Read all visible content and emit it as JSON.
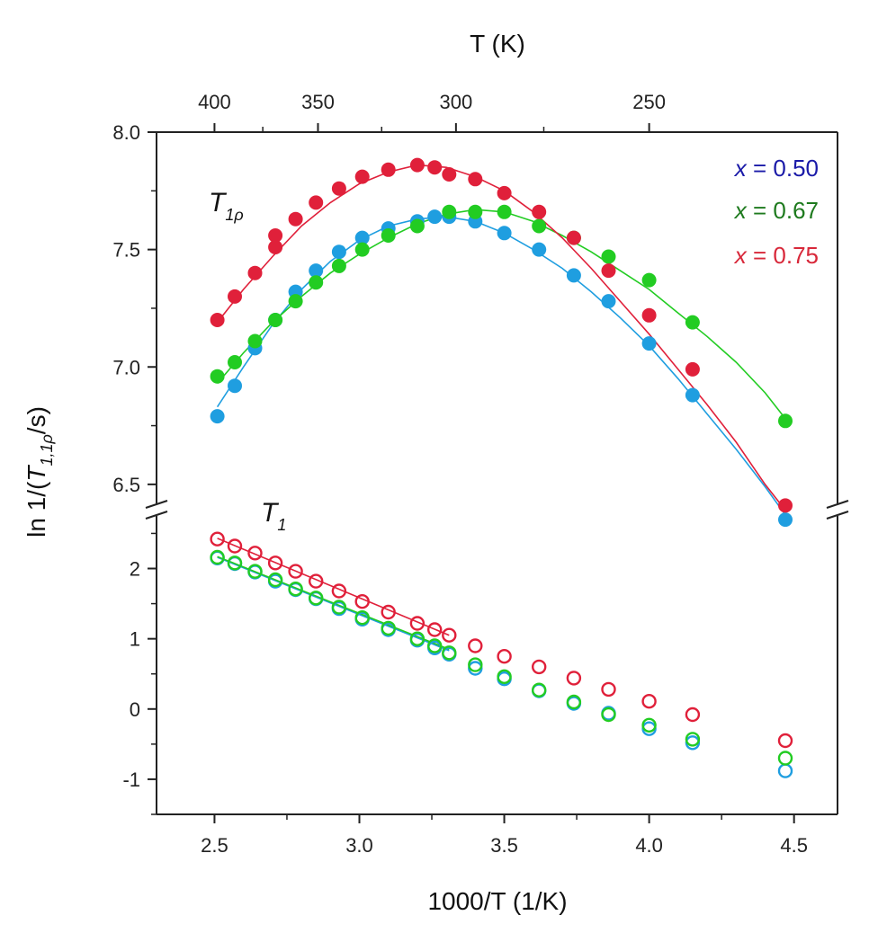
{
  "chart_data": {
    "type": "scatter",
    "xlabel": "1000/T (1/K)",
    "x2label": "T (K)",
    "ylabel_prefix": "ln 1/(",
    "ylabel_var": "T",
    "ylabel_sub": "1,1ρ",
    "ylabel_suffix": "/s)",
    "xlim": [
      2.3,
      4.65
    ],
    "x_ticks": [
      "2.5",
      "3.0",
      "3.5",
      "4.0",
      "4.5"
    ],
    "x2_ticks": [
      "400",
      "350",
      "300",
      "250"
    ],
    "x2_tick_values_K": [
      400,
      350,
      300,
      250
    ],
    "y_upper_lim": [
      6.4,
      8.0
    ],
    "y_upper_ticks": [
      "6.5",
      "7.0",
      "7.5",
      "8.0"
    ],
    "y_lower_lim": [
      -1.5,
      2.8
    ],
    "y_lower_ticks": [
      "-1",
      "0",
      "1",
      "2"
    ],
    "axis_break": true,
    "annotations": {
      "t1rho_main": "T",
      "t1rho_sub": "1ρ",
      "t1_main": "T",
      "t1_sub": "1"
    },
    "legend": {
      "placement": "top-right",
      "entries": [
        {
          "var": "x",
          "text": " = 0.50",
          "color": "#1a1aa8"
        },
        {
          "var": "x",
          "text": " = 0.67",
          "color": "#1e7a1e"
        },
        {
          "var": "x",
          "text": " = 0.75",
          "color": "#d8283a"
        }
      ]
    },
    "series": [
      {
        "panel": "T1rho",
        "color": "#1f9ee0",
        "x": [
          2.51,
          2.57,
          2.64,
          2.71,
          2.78,
          2.85,
          2.93,
          3.01,
          3.1,
          3.2,
          3.26,
          3.31,
          3.4,
          3.5,
          3.62,
          3.74,
          3.86,
          4.0,
          4.15,
          4.47
        ],
        "y": [
          6.79,
          6.92,
          7.08,
          7.2,
          7.32,
          7.41,
          7.49,
          7.55,
          7.59,
          7.62,
          7.64,
          7.64,
          7.62,
          7.57,
          7.5,
          7.39,
          7.28,
          7.1,
          6.88,
          6.35
        ],
        "fit": [
          [
            2.51,
            6.83
          ],
          [
            2.6,
            7.0
          ],
          [
            2.7,
            7.18
          ],
          [
            2.8,
            7.33
          ],
          [
            2.9,
            7.45
          ],
          [
            3.0,
            7.54
          ],
          [
            3.1,
            7.6
          ],
          [
            3.2,
            7.63
          ],
          [
            3.3,
            7.64
          ],
          [
            3.4,
            7.62
          ],
          [
            3.5,
            7.57
          ],
          [
            3.6,
            7.5
          ],
          [
            3.7,
            7.42
          ],
          [
            3.8,
            7.32
          ],
          [
            3.9,
            7.21
          ],
          [
            4.0,
            7.09
          ],
          [
            4.1,
            6.95
          ],
          [
            4.2,
            6.8
          ],
          [
            4.3,
            6.65
          ],
          [
            4.4,
            6.49
          ],
          [
            4.47,
            6.37
          ]
        ]
      },
      {
        "panel": "T1rho",
        "color": "#22cc22",
        "x": [
          2.51,
          2.57,
          2.64,
          2.71,
          2.78,
          2.85,
          2.93,
          3.01,
          3.1,
          3.2,
          3.31,
          3.4,
          3.5,
          3.62,
          3.74,
          3.86,
          4.0,
          4.15,
          4.47
        ],
        "y": [
          6.96,
          7.02,
          7.11,
          7.2,
          7.28,
          7.36,
          7.43,
          7.5,
          7.56,
          7.6,
          7.66,
          7.66,
          7.66,
          7.6,
          7.55,
          7.47,
          7.37,
          7.19,
          6.77
        ],
        "fit": [
          [
            2.51,
            6.93
          ],
          [
            2.6,
            7.06
          ],
          [
            2.7,
            7.19
          ],
          [
            2.8,
            7.3
          ],
          [
            2.9,
            7.4
          ],
          [
            3.0,
            7.48
          ],
          [
            3.1,
            7.55
          ],
          [
            3.2,
            7.61
          ],
          [
            3.3,
            7.65
          ],
          [
            3.4,
            7.67
          ],
          [
            3.5,
            7.66
          ],
          [
            3.6,
            7.62
          ],
          [
            3.7,
            7.56
          ],
          [
            3.8,
            7.49
          ],
          [
            3.9,
            7.41
          ],
          [
            4.0,
            7.33
          ],
          [
            4.1,
            7.23
          ],
          [
            4.2,
            7.13
          ],
          [
            4.3,
            7.02
          ],
          [
            4.4,
            6.89
          ],
          [
            4.47,
            6.78
          ]
        ]
      },
      {
        "panel": "T1rho",
        "color": "#e0203a",
        "x": [
          2.51,
          2.57,
          2.64,
          2.71,
          2.71,
          2.78,
          2.85,
          2.93,
          3.01,
          3.1,
          3.2,
          3.26,
          3.31,
          3.4,
          3.5,
          3.62,
          3.74,
          3.86,
          4.0,
          4.15,
          4.47
        ],
        "y": [
          7.2,
          7.3,
          7.4,
          7.51,
          7.56,
          7.63,
          7.7,
          7.76,
          7.81,
          7.84,
          7.86,
          7.85,
          7.82,
          7.8,
          7.74,
          7.66,
          7.55,
          7.41,
          7.22,
          6.99,
          6.41
        ],
        "fit": [
          [
            2.51,
            7.19
          ],
          [
            2.6,
            7.33
          ],
          [
            2.7,
            7.47
          ],
          [
            2.8,
            7.6
          ],
          [
            2.9,
            7.7
          ],
          [
            3.0,
            7.78
          ],
          [
            3.1,
            7.83
          ],
          [
            3.2,
            7.86
          ],
          [
            3.3,
            7.85
          ],
          [
            3.4,
            7.81
          ],
          [
            3.5,
            7.75
          ],
          [
            3.6,
            7.66
          ],
          [
            3.7,
            7.55
          ],
          [
            3.8,
            7.42
          ],
          [
            3.9,
            7.28
          ],
          [
            4.0,
            7.14
          ],
          [
            4.1,
            6.99
          ],
          [
            4.2,
            6.84
          ],
          [
            4.3,
            6.68
          ],
          [
            4.4,
            6.5
          ],
          [
            4.47,
            6.39
          ]
        ]
      },
      {
        "panel": "T1",
        "color": "#1f9ee0",
        "x": [
          2.51,
          2.57,
          2.64,
          2.71,
          2.78,
          2.85,
          2.93,
          3.01,
          3.1,
          3.2,
          3.26,
          3.31,
          3.4,
          3.5,
          3.62,
          3.74,
          3.86,
          4.0,
          4.15,
          4.47
        ],
        "y": [
          2.15,
          2.07,
          1.95,
          1.82,
          1.7,
          1.57,
          1.43,
          1.28,
          1.13,
          0.98,
          0.87,
          0.78,
          0.58,
          0.43,
          0.26,
          0.08,
          -0.06,
          -0.28,
          -0.48,
          -0.88
        ],
        "fit": [
          [
            2.51,
            2.16
          ],
          [
            3.31,
            0.83
          ]
        ]
      },
      {
        "panel": "T1",
        "color": "#22cc22",
        "x": [
          2.51,
          2.57,
          2.64,
          2.71,
          2.78,
          2.85,
          2.93,
          3.01,
          3.1,
          3.2,
          3.26,
          3.31,
          3.4,
          3.5,
          3.62,
          3.74,
          3.86,
          4.0,
          4.15,
          4.47
        ],
        "y": [
          2.16,
          2.08,
          1.96,
          1.84,
          1.71,
          1.58,
          1.45,
          1.3,
          1.15,
          1.0,
          0.9,
          0.8,
          0.63,
          0.46,
          0.27,
          0.1,
          -0.08,
          -0.23,
          -0.43,
          -0.7
        ],
        "fit": [
          [
            2.51,
            2.17
          ],
          [
            3.31,
            0.85
          ]
        ]
      },
      {
        "panel": "T1",
        "color": "#e0203a",
        "x": [
          2.51,
          2.57,
          2.64,
          2.71,
          2.78,
          2.85,
          2.93,
          3.01,
          3.1,
          3.2,
          3.26,
          3.31,
          3.4,
          3.5,
          3.62,
          3.74,
          3.86,
          4.0,
          4.15,
          4.47
        ],
        "y": [
          2.42,
          2.32,
          2.22,
          2.08,
          1.96,
          1.82,
          1.68,
          1.53,
          1.38,
          1.22,
          1.13,
          1.05,
          0.9,
          0.75,
          0.6,
          0.44,
          0.28,
          0.11,
          -0.08,
          -0.45
        ],
        "fit": [
          [
            2.51,
            2.43
          ],
          [
            3.31,
            1.05
          ]
        ]
      }
    ]
  }
}
